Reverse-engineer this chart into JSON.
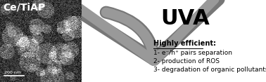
{
  "bg_color": "#ffffff",
  "label_cetia": "Ce/TiAP",
  "label_uva": "UVA",
  "label_highly": "Highly efficient:",
  "label_line1": "1- e⁻/h⁺ pairs separation",
  "label_line2": "2- production of ROS",
  "label_line3": "3- degradation of organic pollutants",
  "label_scale": "200 nm",
  "arrow_color": "#999999",
  "arrow_edge_color": "#777777",
  "text_color": "#000000",
  "uva_fontsize": 22,
  "cetia_fontsize": 10,
  "highly_fontsize": 7.0,
  "body_fontsize": 6.5,
  "scale_fontsize": 4.5,
  "sem_noise_seed": 42,
  "sem_base_mean": 55,
  "sem_base_std": 22,
  "sem_blob_count": 35,
  "sem_blob_brightness": 45
}
